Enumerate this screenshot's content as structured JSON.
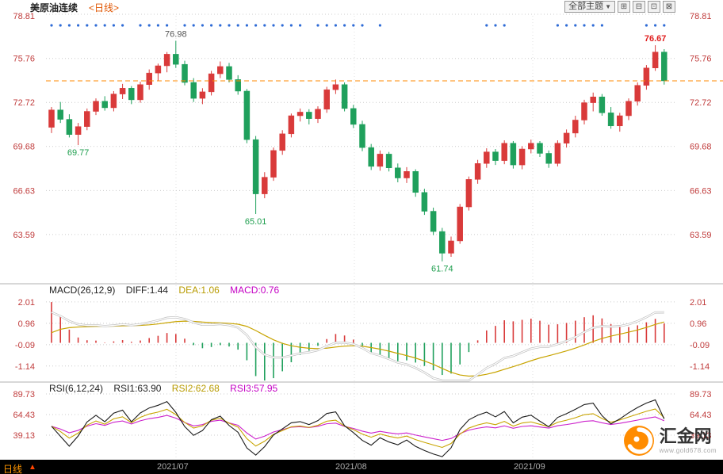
{
  "header": {
    "title": "美原油连续",
    "period_tag": "<日线>",
    "theme_dropdown_label": "全部主题",
    "theme_dropdown_caret": "▼",
    "layout_buttons": [
      "⊞",
      "⊟",
      "⊡",
      "⊠"
    ]
  },
  "price_pane": {
    "y_ticks": [
      "78.81",
      "75.76",
      "72.72",
      "69.68",
      "66.63",
      "63.59"
    ],
    "y_tick_values": [
      78.81,
      75.76,
      72.72,
      69.68,
      66.63,
      63.59
    ],
    "last_price": 74.21
  },
  "chart_data": {
    "type": "candlestick",
    "title": "美原油连续 日线",
    "x_labels": [
      "2021/07",
      "2021/08",
      "2021/09"
    ],
    "ylim": [
      60.2,
      78.81
    ],
    "candles_ohlc": [
      [
        71.0,
        72.4,
        70.6,
        72.2
      ],
      [
        72.2,
        72.75,
        71.3,
        71.55
      ],
      [
        71.55,
        71.9,
        70.3,
        70.5
      ],
      [
        70.5,
        71.3,
        69.77,
        71.05
      ],
      [
        71.05,
        72.3,
        70.8,
        72.1
      ],
      [
        72.1,
        73.0,
        71.85,
        72.8
      ],
      [
        72.8,
        73.15,
        72.15,
        72.35
      ],
      [
        72.35,
        73.5,
        72.1,
        73.3
      ],
      [
        73.3,
        74.0,
        72.95,
        73.7
      ],
      [
        73.7,
        73.85,
        72.6,
        72.9
      ],
      [
        72.9,
        74.15,
        72.7,
        73.95
      ],
      [
        73.95,
        75.0,
        73.6,
        74.75
      ],
      [
        74.75,
        75.4,
        74.2,
        75.25
      ],
      [
        75.25,
        76.2,
        74.8,
        76.05
      ],
      [
        76.05,
        76.98,
        75.1,
        75.35
      ],
      [
        75.35,
        75.6,
        73.9,
        74.1
      ],
      [
        74.1,
        74.4,
        72.75,
        73.0
      ],
      [
        73.0,
        73.7,
        72.6,
        73.45
      ],
      [
        73.45,
        74.9,
        73.2,
        74.7
      ],
      [
        74.7,
        75.55,
        74.4,
        75.2
      ],
      [
        75.2,
        75.45,
        74.1,
        74.3
      ],
      [
        74.3,
        74.6,
        73.25,
        73.5
      ],
      [
        73.5,
        73.65,
        69.9,
        70.15
      ],
      [
        70.15,
        70.4,
        65.01,
        66.4
      ],
      [
        66.4,
        67.9,
        66.1,
        67.55
      ],
      [
        67.55,
        69.6,
        67.3,
        69.4
      ],
      [
        69.4,
        70.8,
        69.1,
        70.55
      ],
      [
        70.55,
        71.95,
        70.3,
        71.8
      ],
      [
        71.8,
        72.3,
        71.4,
        72.05
      ],
      [
        72.05,
        72.25,
        71.2,
        71.6
      ],
      [
        71.6,
        72.45,
        71.3,
        72.25
      ],
      [
        72.25,
        73.8,
        72.0,
        73.6
      ],
      [
        73.6,
        74.3,
        73.3,
        73.95
      ],
      [
        73.95,
        74.1,
        72.1,
        72.3
      ],
      [
        72.3,
        72.55,
        70.95,
        71.2
      ],
      [
        71.2,
        71.45,
        69.35,
        69.6
      ],
      [
        69.6,
        69.85,
        68.05,
        68.3
      ],
      [
        68.3,
        69.4,
        68.0,
        69.15
      ],
      [
        69.15,
        69.3,
        67.95,
        68.2
      ],
      [
        68.2,
        68.5,
        67.2,
        67.5
      ],
      [
        67.5,
        68.25,
        67.15,
        67.95
      ],
      [
        67.95,
        68.1,
        66.2,
        66.5
      ],
      [
        66.5,
        66.75,
        64.95,
        65.2
      ],
      [
        65.2,
        65.45,
        63.55,
        63.8
      ],
      [
        63.8,
        64.05,
        61.74,
        62.3
      ],
      [
        62.3,
        63.45,
        62.05,
        63.15
      ],
      [
        63.15,
        65.7,
        62.95,
        65.5
      ],
      [
        65.5,
        67.6,
        65.25,
        67.4
      ],
      [
        67.4,
        68.75,
        67.1,
        68.5
      ],
      [
        68.5,
        69.55,
        68.2,
        69.3
      ],
      [
        69.3,
        69.5,
        68.4,
        68.7
      ],
      [
        68.7,
        70.1,
        68.45,
        69.9
      ],
      [
        69.9,
        70.05,
        68.15,
        68.4
      ],
      [
        68.4,
        69.7,
        68.1,
        69.5
      ],
      [
        69.5,
        70.15,
        69.2,
        69.9
      ],
      [
        69.9,
        70.05,
        68.95,
        69.2
      ],
      [
        69.2,
        69.4,
        68.2,
        68.5
      ],
      [
        68.5,
        70.1,
        68.3,
        69.9
      ],
      [
        69.9,
        70.85,
        69.6,
        70.6
      ],
      [
        70.6,
        71.8,
        70.3,
        71.5
      ],
      [
        71.5,
        72.9,
        71.2,
        72.7
      ],
      [
        72.7,
        73.4,
        72.1,
        73.1
      ],
      [
        73.1,
        73.3,
        71.8,
        72.0
      ],
      [
        72.0,
        72.4,
        70.9,
        71.1
      ],
      [
        71.1,
        72.0,
        70.7,
        71.8
      ],
      [
        71.8,
        73.0,
        71.5,
        72.8
      ],
      [
        72.8,
        74.1,
        72.5,
        73.9
      ],
      [
        73.9,
        75.3,
        73.6,
        75.1
      ],
      [
        75.1,
        76.67,
        74.9,
        76.2
      ],
      [
        76.2,
        76.4,
        73.95,
        74.21
      ]
    ],
    "annotations": [
      {
        "text": "69.77",
        "index": 3,
        "pos": "low",
        "color": "#1e9e4e",
        "bold": false
      },
      {
        "text": "76.98",
        "index": 14,
        "pos": "high",
        "color": "#555555",
        "bold": false
      },
      {
        "text": "65.01",
        "index": 23,
        "pos": "low",
        "color": "#1e9e4e",
        "bold": false
      },
      {
        "text": "61.74",
        "index": 44,
        "pos": "low",
        "color": "#1e9e4e",
        "bold": false
      },
      {
        "text": "76.67",
        "index": 68,
        "pos": "high",
        "color": "#e02020",
        "bold": true
      }
    ],
    "signal_dot_indices": [
      0,
      1,
      2,
      3,
      4,
      5,
      6,
      7,
      8,
      10,
      11,
      12,
      13,
      15,
      16,
      17,
      18,
      19,
      20,
      21,
      22,
      23,
      24,
      25,
      26,
      27,
      28,
      30,
      31,
      32,
      33,
      34,
      35,
      37,
      49,
      50,
      51,
      57,
      58,
      59,
      60,
      61,
      62,
      67,
      68,
      69
    ],
    "indicators": {
      "macd": {
        "params": [
          26,
          12,
          9
        ],
        "diff": 1.44,
        "dea": 1.06,
        "macd": 0.76,
        "y_ticks": [
          "2.01",
          "0.96",
          "-0.09",
          "-1.14"
        ],
        "y_tick_values": [
          2.01,
          0.96,
          -0.09,
          -1.14
        ]
      },
      "rsi": {
        "params": [
          6,
          12,
          24
        ],
        "rsi1": 63.9,
        "rsi2": 62.68,
        "rsi3": 57.95,
        "y_ticks": [
          "89.73",
          "64.43",
          "39.13"
        ],
        "y_tick_values": [
          89.73,
          64.43,
          39.13
        ]
      }
    }
  },
  "macd_header": {
    "name": "MACD(26,12,9)",
    "diff_label": "DIFF:1.44",
    "dea_label": "DEA:1.06",
    "macd_label": "MACD:0.76"
  },
  "rsi_header": {
    "name": "RSI(6,12,24)",
    "rsi1_label": "RSI1:63.90",
    "rsi2_label": "RSI2:62.68",
    "rsi3_label": "RSI3:57.95"
  },
  "footer": {
    "period": "日线",
    "arrow": "▲",
    "dates": [
      "2021/07",
      "2021/08",
      "2021/09"
    ]
  },
  "watermark": {
    "name": "汇金网",
    "url": "www.gold678.com"
  },
  "colors": {
    "up": "#d93a3a",
    "down": "#1fa05c",
    "axis_label": "#c03c3c",
    "dashed_line": "#ff8a00",
    "signal_dot": "#2e6bd6",
    "dea_line": "#c8a400",
    "diff_line": "#ffffff",
    "diff_halo": "#bbbbbb",
    "macd_value": "#c400c4",
    "rsi1": "#1a1a1a",
    "rsi2": "#c8a400",
    "rsi3": "#cc22cc",
    "grid": "#cccccc",
    "separator": "#b0b0b0",
    "month_grid": "#e0e0e0"
  }
}
